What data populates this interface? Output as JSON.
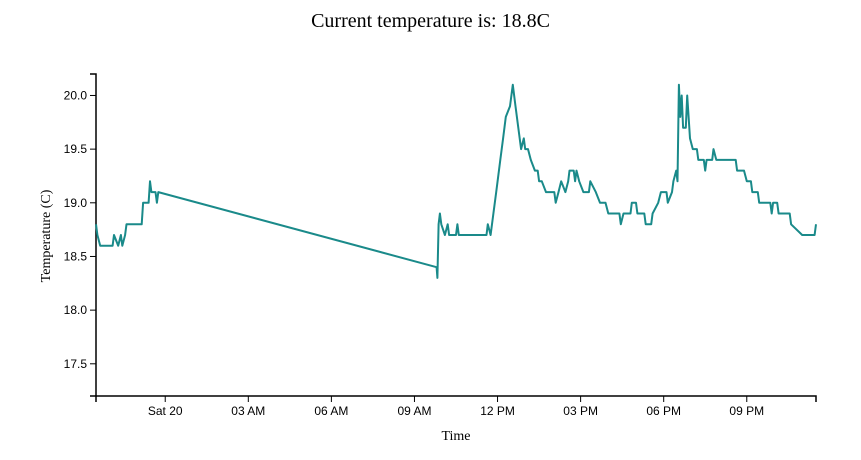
{
  "header": {
    "title": "Current temperature is: 18.8C"
  },
  "chart_data": {
    "type": "line",
    "title": "Current temperature is: 18.8C",
    "xlabel": "Time",
    "ylabel": "Temperature (C)",
    "x_unit": "hour (relative to Sat 20 00:00)",
    "xlim": [
      -2.5,
      23.5
    ],
    "ylim": [
      17.2,
      20.2
    ],
    "grid": false,
    "x_ticks": [
      {
        "value": 0,
        "label": "Sat 20"
      },
      {
        "value": 3,
        "label": "03 AM"
      },
      {
        "value": 6,
        "label": "06 AM"
      },
      {
        "value": 9,
        "label": "09 AM"
      },
      {
        "value": 12,
        "label": "12 PM"
      },
      {
        "value": 15,
        "label": "03 PM"
      },
      {
        "value": 18,
        "label": "06 PM"
      },
      {
        "value": 21,
        "label": "09 PM"
      }
    ],
    "y_ticks": [
      {
        "value": 17.5,
        "label": "17.5"
      },
      {
        "value": 18.0,
        "label": "18.0"
      },
      {
        "value": 18.5,
        "label": "18.5"
      },
      {
        "value": 19.0,
        "label": "19.0"
      },
      {
        "value": 19.5,
        "label": "19.5"
      },
      {
        "value": 20.0,
        "label": "20.0"
      }
    ],
    "series": [
      {
        "color": "#1a8a8a",
        "points": [
          [
            -2.5,
            18.8
          ],
          [
            -2.45,
            18.7
          ],
          [
            -2.35,
            18.6
          ],
          [
            -1.9,
            18.6
          ],
          [
            -1.85,
            18.7
          ],
          [
            -1.7,
            18.6
          ],
          [
            -1.6,
            18.7
          ],
          [
            -1.55,
            18.6
          ],
          [
            -1.45,
            18.7
          ],
          [
            -1.4,
            18.8
          ],
          [
            -0.85,
            18.8
          ],
          [
            -0.8,
            19.0
          ],
          [
            -0.6,
            19.0
          ],
          [
            -0.55,
            19.2
          ],
          [
            -0.5,
            19.1
          ],
          [
            -0.35,
            19.1
          ],
          [
            -0.3,
            19.0
          ],
          [
            -0.25,
            19.1
          ],
          [
            9.8,
            18.4
          ],
          [
            9.83,
            18.3
          ],
          [
            9.87,
            18.8
          ],
          [
            9.92,
            18.9
          ],
          [
            9.97,
            18.8
          ],
          [
            10.1,
            18.7
          ],
          [
            10.2,
            18.8
          ],
          [
            10.25,
            18.7
          ],
          [
            10.5,
            18.7
          ],
          [
            10.55,
            18.8
          ],
          [
            10.6,
            18.7
          ],
          [
            11.6,
            18.7
          ],
          [
            11.65,
            18.8
          ],
          [
            11.75,
            18.7
          ],
          [
            11.85,
            18.9
          ],
          [
            11.95,
            19.1
          ],
          [
            12.1,
            19.4
          ],
          [
            12.2,
            19.6
          ],
          [
            12.3,
            19.8
          ],
          [
            12.45,
            19.9
          ],
          [
            12.55,
            20.1
          ],
          [
            12.65,
            19.9
          ],
          [
            12.75,
            19.7
          ],
          [
            12.85,
            19.5
          ],
          [
            12.95,
            19.6
          ],
          [
            13.0,
            19.5
          ],
          [
            13.1,
            19.5
          ],
          [
            13.2,
            19.4
          ],
          [
            13.35,
            19.3
          ],
          [
            13.45,
            19.3
          ],
          [
            13.5,
            19.2
          ],
          [
            13.6,
            19.2
          ],
          [
            13.75,
            19.1
          ],
          [
            14.05,
            19.1
          ],
          [
            14.1,
            19.0
          ],
          [
            14.2,
            19.1
          ],
          [
            14.3,
            19.2
          ],
          [
            14.45,
            19.1
          ],
          [
            14.55,
            19.2
          ],
          [
            14.6,
            19.3
          ],
          [
            14.75,
            19.3
          ],
          [
            14.8,
            19.2
          ],
          [
            14.85,
            19.3
          ],
          [
            14.95,
            19.2
          ],
          [
            15.1,
            19.1
          ],
          [
            15.3,
            19.1
          ],
          [
            15.35,
            19.2
          ],
          [
            15.55,
            19.1
          ],
          [
            15.7,
            19.0
          ],
          [
            15.9,
            19.0
          ],
          [
            16.0,
            18.9
          ],
          [
            16.4,
            18.9
          ],
          [
            16.45,
            18.8
          ],
          [
            16.55,
            18.9
          ],
          [
            16.8,
            18.9
          ],
          [
            16.85,
            19.0
          ],
          [
            17.0,
            19.0
          ],
          [
            17.05,
            18.9
          ],
          [
            17.3,
            18.9
          ],
          [
            17.35,
            18.8
          ],
          [
            17.55,
            18.8
          ],
          [
            17.6,
            18.9
          ],
          [
            17.8,
            19.0
          ],
          [
            17.9,
            19.1
          ],
          [
            18.1,
            19.1
          ],
          [
            18.15,
            19.0
          ],
          [
            18.3,
            19.1
          ],
          [
            18.35,
            19.2
          ],
          [
            18.45,
            19.3
          ],
          [
            18.5,
            19.2
          ],
          [
            18.55,
            20.1
          ],
          [
            18.6,
            19.8
          ],
          [
            18.65,
            20.0
          ],
          [
            18.7,
            19.7
          ],
          [
            18.8,
            19.7
          ],
          [
            18.85,
            20.0
          ],
          [
            18.9,
            19.8
          ],
          [
            18.95,
            19.6
          ],
          [
            19.05,
            19.5
          ],
          [
            19.2,
            19.5
          ],
          [
            19.25,
            19.4
          ],
          [
            19.45,
            19.4
          ],
          [
            19.5,
            19.3
          ],
          [
            19.55,
            19.4
          ],
          [
            19.75,
            19.4
          ],
          [
            19.8,
            19.5
          ],
          [
            19.9,
            19.4
          ],
          [
            20.6,
            19.4
          ],
          [
            20.65,
            19.3
          ],
          [
            20.9,
            19.3
          ],
          [
            21.0,
            19.2
          ],
          [
            21.15,
            19.2
          ],
          [
            21.2,
            19.1
          ],
          [
            21.4,
            19.1
          ],
          [
            21.45,
            19.0
          ],
          [
            21.85,
            19.0
          ],
          [
            21.9,
            18.9
          ],
          [
            21.95,
            19.0
          ],
          [
            22.1,
            19.0
          ],
          [
            22.15,
            18.9
          ],
          [
            22.55,
            18.9
          ],
          [
            22.6,
            18.8
          ],
          [
            23.0,
            18.7
          ],
          [
            23.45,
            18.7
          ],
          [
            23.5,
            18.8
          ]
        ]
      }
    ]
  }
}
